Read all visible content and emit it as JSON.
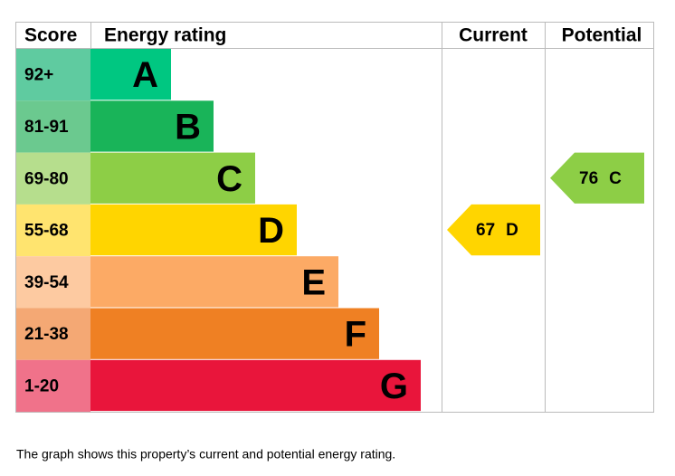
{
  "headers": {
    "score": "Score",
    "rating": "Energy rating",
    "current": "Current",
    "potential": "Potential"
  },
  "bands": [
    {
      "score": "92+",
      "letter": "A",
      "color": "#00c781",
      "score_color": "#5fcba0"
    },
    {
      "score": "81-91",
      "letter": "B",
      "color": "#19b459",
      "score_color": "#6bc98f"
    },
    {
      "score": "69-80",
      "letter": "C",
      "color": "#8dce46",
      "score_color": "#b6de8d"
    },
    {
      "score": "55-68",
      "letter": "D",
      "color": "#ffd500",
      "score_color": "#ffe46f"
    },
    {
      "score": "39-54",
      "letter": "E",
      "color": "#fcaa65",
      "score_color": "#fdcaa1"
    },
    {
      "score": "21-38",
      "letter": "F",
      "color": "#ef8023",
      "score_color": "#f4a874"
    },
    {
      "score": "1-20",
      "letter": "G",
      "color": "#e9153b",
      "score_color": "#f0728a"
    }
  ],
  "current": {
    "value": 67,
    "letter": "D"
  },
  "potential": {
    "value": 76,
    "letter": "C"
  },
  "caption": "The graph shows this property’s current and potential energy rating."
}
